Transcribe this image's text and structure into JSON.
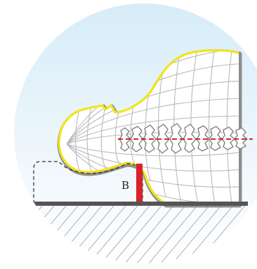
{
  "labels": {
    "measurement": "B"
  },
  "colors": {
    "background_top": "#d6ecf8",
    "background_bottom": "#ffffff",
    "body_fill": "#ffffff",
    "body_outline": "#f2e51c",
    "body_shadow": "#8e8e8e",
    "mesh": "#b9b9b9",
    "spine": "#7a7a7a",
    "spine_axis": "#d8232a",
    "measure_bar": "#d8232a",
    "pillow_outline": "#333333",
    "floor": "#555555",
    "hatch": "#9a9a9a"
  },
  "icons": {
    "spine": "vertebra-column",
    "pillow": "dashed-pillow-outline"
  }
}
